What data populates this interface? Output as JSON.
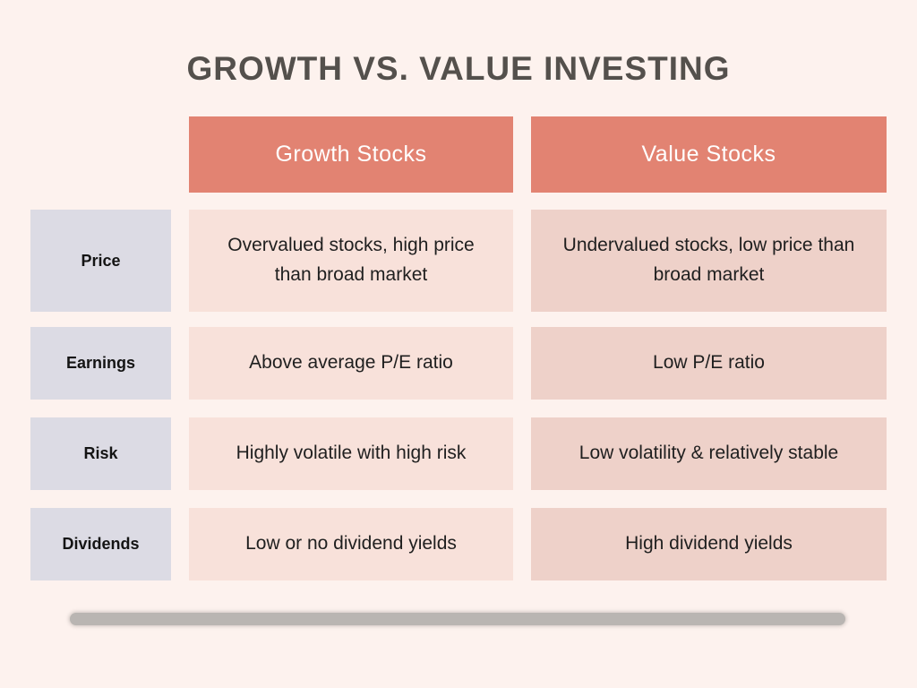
{
  "title": "GROWTH VS. VALUE INVESTING",
  "table": {
    "column_headers": [
      {
        "label": "Growth Stocks"
      },
      {
        "label": "Value Stocks"
      }
    ],
    "rows": [
      {
        "label": "Price",
        "growth": "Overvalued stocks, high price than broad market",
        "value": "Undervalued stocks, low price than broad market"
      },
      {
        "label": "Earnings",
        "growth": "Above average P/E ratio",
        "value": "Low P/E ratio"
      },
      {
        "label": "Risk",
        "growth": "Highly volatile with high risk",
        "value": "Low volatility & relatively stable"
      },
      {
        "label": "Dividends",
        "growth": "Low or no dividend yields",
        "value": "High dividend yields"
      }
    ]
  },
  "colors": {
    "background": "#fdf2ee",
    "header_fill": "#e28372",
    "header_text": "#ffffff",
    "label_fill": "#dcdbe4",
    "growth_cell_fill": "#f8e1da",
    "value_cell_fill": "#eed1c9",
    "title_text": "#54504c",
    "body_text": "#1f1f1f",
    "divider_bar": "#b9b5b2"
  }
}
